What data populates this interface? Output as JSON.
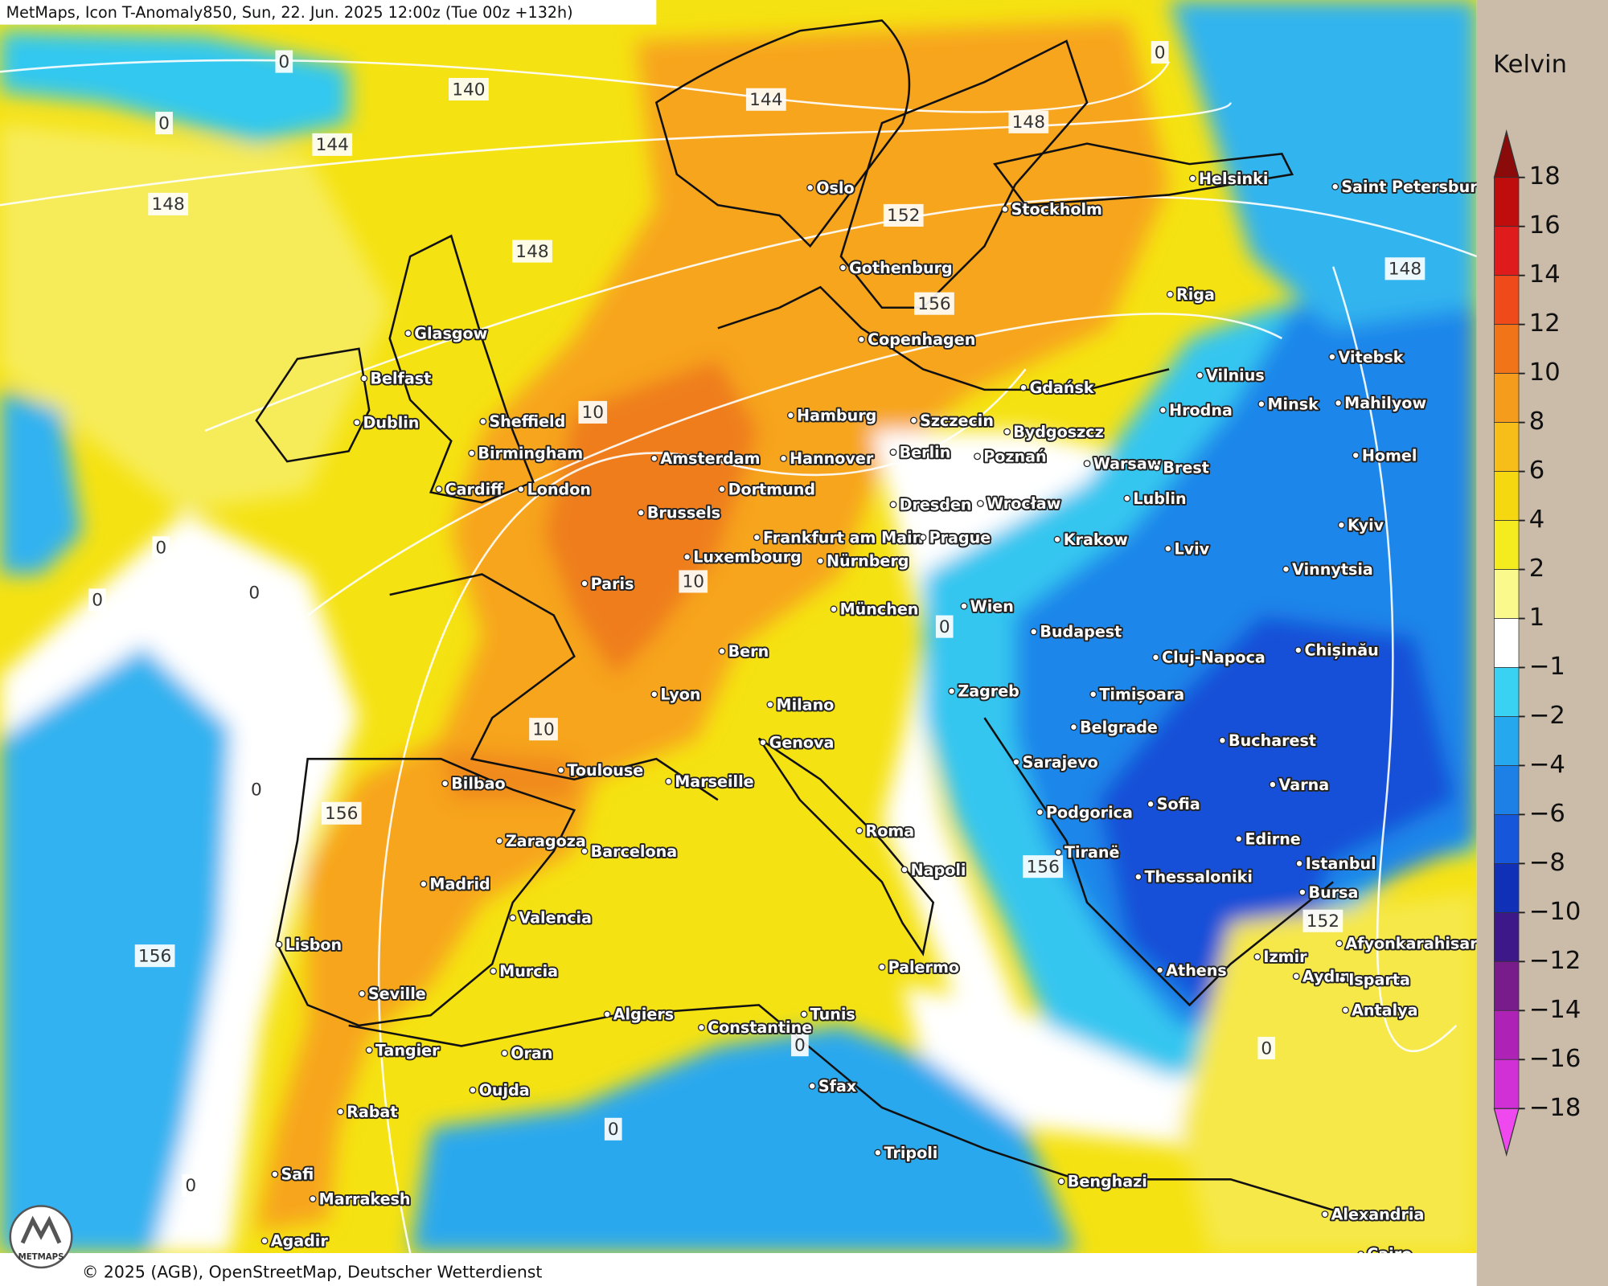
{
  "header": {
    "title": "MetMaps, Icon T-Anomaly850, Sun, 22. Jun. 2025 12:00z (Tue 00z +132h)"
  },
  "map": {
    "cities": [
      "Oslo",
      "Stockholm",
      "Helsinki",
      "Saint Petersburg",
      "Gothenburg",
      "Riga",
      "Glasgow",
      "Copenhagen",
      "Belfast",
      "Vilnius",
      "Vitebsk",
      "Gdańsk",
      "Dublin",
      "Sheffield",
      "Hamburg",
      "Szczecin",
      "Bydgoszcz",
      "Hrodna",
      "Minsk",
      "Mahilyow",
      "Birmingham",
      "Amsterdam",
      "Hannover",
      "Berlin",
      "Poznań",
      "Warsaw",
      "Brest",
      "Homel",
      "Cardiff",
      "London",
      "Dortmund",
      "Brussels",
      "Dresden",
      "Wrocław",
      "Lublin",
      "Kyiv",
      "Frankfurt am Main",
      "Prague",
      "Krakow",
      "Lviv",
      "Luxembourg",
      "Nürnberg",
      "Vinnytsia",
      "Paris",
      "München",
      "Wien",
      "Budapest",
      "Bern",
      "Cluj-Napoca",
      "Chișinău",
      "Lyon",
      "Milano",
      "Zagreb",
      "Timișoara",
      "Belgrade",
      "Genova",
      "Bucharest",
      "Sarajevo",
      "Bilbao",
      "Toulouse",
      "Marseille",
      "Varna",
      "Sofia",
      "Podgorica",
      "Roma",
      "Edirne",
      "Zaragoza",
      "Barcelona",
      "Tiranë",
      "Istanbul",
      "Napoli",
      "Thessaloniki",
      "Madrid",
      "Bursa",
      "Valencia",
      "Afyonkarahisar",
      "Lisbon",
      "Izmir",
      "Palermo",
      "Athens",
      "Aydın",
      "Isparta",
      "Murcia",
      "Seville",
      "Antalya",
      "Algiers",
      "Tunis",
      "Constantine",
      "Tangier",
      "Oran",
      "Oujda",
      "Sfax",
      "Rabat",
      "Tripoli",
      "Safi",
      "Benghazi",
      "Marrakesh",
      "Alexandria",
      "Agadir",
      "Cairo"
    ],
    "contour_labels": [
      0,
      140,
      0,
      144,
      144,
      148,
      148,
      0,
      152,
      148,
      156,
      148,
      10,
      0,
      0,
      0,
      10,
      0,
      10,
      0,
      156,
      156,
      152,
      156,
      0,
      0,
      0,
      0
    ]
  },
  "legend": {
    "title": "Kelvin",
    "ticks": [
      18,
      16,
      14,
      12,
      10,
      8,
      6,
      4,
      2,
      1,
      {
        "value": -1,
        "label": "−1"
      },
      {
        "value": -2,
        "label": "−2"
      },
      {
        "value": -4,
        "label": "−4"
      },
      {
        "value": -6,
        "label": "−6"
      },
      {
        "value": -8,
        "label": "−8"
      },
      {
        "value": -10,
        "label": "−10"
      },
      {
        "value": -12,
        "label": "−12"
      },
      {
        "value": -14,
        "label": "−14"
      },
      {
        "value": -16,
        "label": "−16"
      },
      {
        "value": -18,
        "label": "−18"
      }
    ],
    "colors": [
      "#8b0a0a",
      "#bf0c0c",
      "#e01b1b",
      "#ee4a1a",
      "#f27418",
      "#f59c1c",
      "#f7bd18",
      "#f5d80f",
      "#f4ec1e",
      "#fafa8c",
      "#ffffff",
      "#3ad2f2",
      "#26a8ef",
      "#1d80e6",
      "#1656da",
      "#1030b8",
      "#3c1888",
      "#781c8c",
      "#ae22b6",
      "#d030d6",
      "#ee48ee"
    ]
  },
  "footer": {
    "copyright": "© 2025 (AGB), OpenStreetMap, Deutscher Wetterdienst",
    "logo": "METMAPS"
  }
}
